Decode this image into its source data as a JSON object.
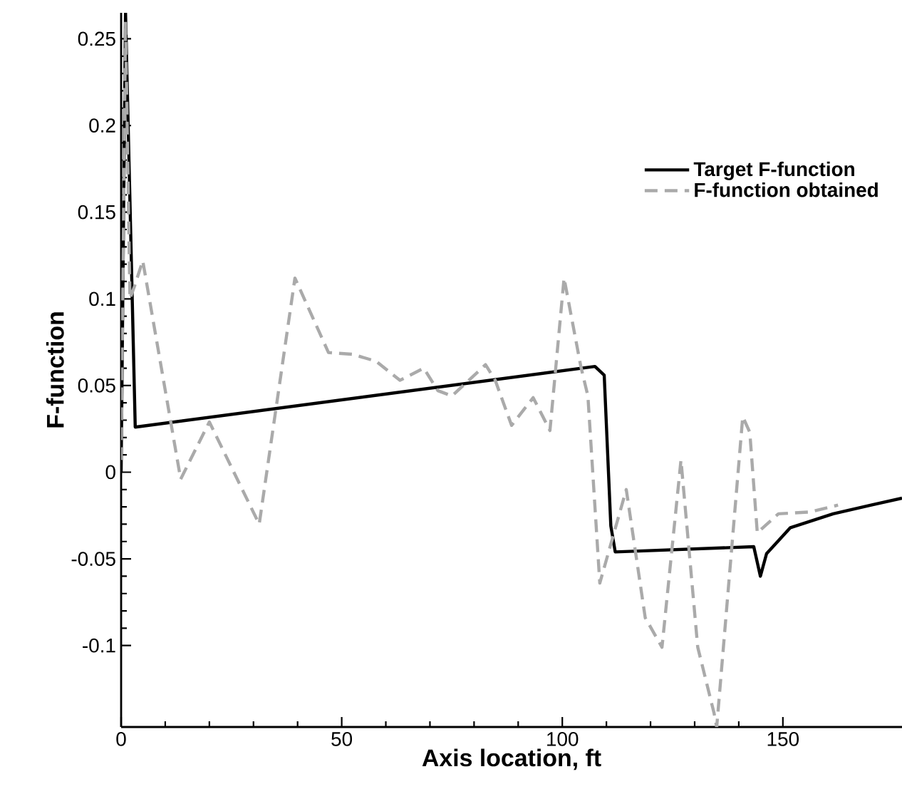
{
  "chart_data": {
    "type": "line",
    "xlabel": "Axis location, ft",
    "ylabel": "F-function",
    "xlim": [
      0,
      177
    ],
    "ylim": [
      -0.147,
      0.265
    ],
    "xticks": [
      0,
      50,
      100,
      150
    ],
    "yticks": [
      -0.1,
      -0.05,
      0,
      0.05,
      0.1,
      0.15,
      0.2,
      0.25
    ],
    "grid": false,
    "legend": "top right",
    "marker": "none",
    "series": [
      {
        "name": "Target F-function",
        "color": "#000000",
        "line_style": "solid",
        "x": [
          0,
          1,
          3.2,
          107.4,
          109.5,
          111,
          112,
          143.4,
          144.9,
          146.3,
          151.7,
          161.4,
          170,
          177
        ],
        "values": [
          0,
          0.265,
          0.026,
          0.061,
          0.056,
          -0.031,
          -0.046,
          -0.043,
          -0.06,
          -0.047,
          -0.032,
          -0.024,
          -0.019,
          -0.015
        ]
      },
      {
        "name": "F-function obtained",
        "color": "#aaaaaa",
        "line_style": "dashed",
        "x": [
          0,
          1,
          2,
          3,
          4.9,
          13.5,
          20,
          31.3,
          39.4,
          47,
          52.4,
          57.8,
          63.2,
          68.6,
          71.8,
          75,
          82.6,
          84.8,
          88.5,
          93.4,
          97.2,
          100.4,
          104.2,
          105.8,
          108.5,
          114.5,
          118.8,
          122.6,
          126.9,
          130.7,
          134.4,
          135,
          140.9,
          142.5,
          144.2,
          149,
          156,
          162.5
        ],
        "values": [
          0.007,
          0.26,
          0.1,
          0.107,
          0.122,
          -0.004,
          0.029,
          -0.03,
          0.112,
          0.069,
          0.068,
          0.064,
          0.053,
          0.06,
          0.047,
          0.044,
          0.062,
          0.053,
          0.027,
          0.043,
          0.024,
          0.112,
          0.061,
          0.044,
          -0.064,
          -0.01,
          -0.084,
          -0.101,
          0.007,
          -0.101,
          -0.139,
          -0.147,
          0.032,
          0.023,
          -0.035,
          -0.024,
          -0.023,
          -0.019
        ]
      }
    ]
  }
}
